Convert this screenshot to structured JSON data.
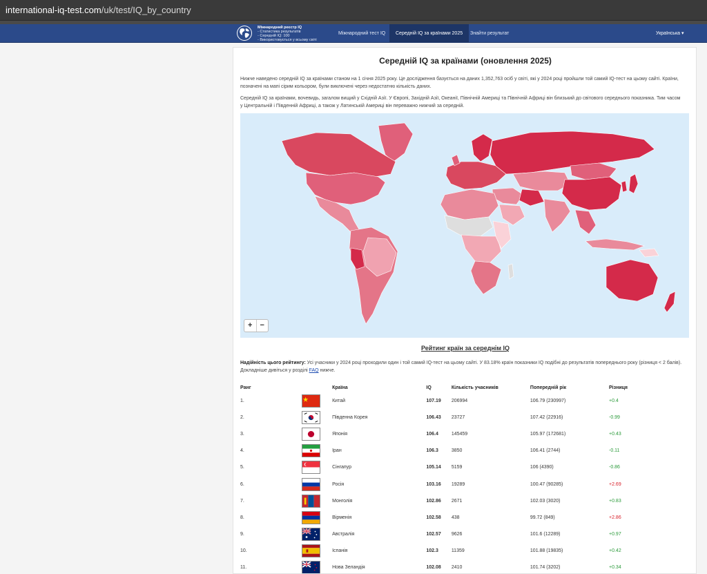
{
  "browser": {
    "url_host": "international-iq-test.com",
    "url_path": "/uk/test/IQ_by_country"
  },
  "navbar": {
    "logo_lines": [
      "Міжнародний реєстр IQ",
      "- Статистика результатів",
      "- Середній IQ: 100",
      "- Використовується у всьому світі"
    ],
    "links": [
      {
        "label": "Міжнародний тест IQ",
        "active": false
      },
      {
        "label": "Середній IQ за країнами 2025",
        "active": true
      },
      {
        "label": "Знайти результат",
        "active": false
      }
    ],
    "language": "Українська",
    "language_caret": "▾"
  },
  "page": {
    "title": "Середній IQ за країнами (оновлення 2025)",
    "intro_1": "Нижче наведено середній IQ за країнами станом на 1 січня 2025 року. Це дослідження базується на даних 1,352,763 осіб у світі, які у 2024 році пройшли той самий IQ-тест на цьому сайті. Країни, позначені на мапі сірим кольором, були виключені через недостатню кількість даних.",
    "intro_2": "Середній IQ за країнами, вочевидь, загалом вищий у Східній Азії. У Європі, Західній Азії, Океанії, Північній Америці та Північній Африці він близький до світового середнього показника. Тим часом у Центральній і Південній Африці, а також у Латинській Америці він переважно нижчий за середній.",
    "zoom_in": "+",
    "zoom_out": "−",
    "ranking_title": "Рейтинг країн за середнім IQ",
    "reliability_label": "Надійність цього рейтингу:",
    "reliability_text": " Усі учасники у 2024 році проходили один і той самий IQ-тест на цьому сайті. У 83.18% країн показники IQ подібні до результатів попереднього року (різниця < 2 балів). Докладніше дивіться у розділі ",
    "reliability_link": "FAQ",
    "reliability_end": " нижче."
  },
  "colors": {
    "navbar": "#2b4a8a",
    "map_dark": "#d42a4a",
    "map_mid": "#e0607a",
    "map_light": "#f2a8b4",
    "map_pale": "#fad2d8",
    "map_nodata": "#dedede",
    "ocean": "#d9ecfa"
  },
  "table": {
    "headers": {
      "rank": "Ранг",
      "country": "Країна",
      "iq": "IQ",
      "participants": "Кількість учасників",
      "previous": "Попередній рік",
      "diff": "Різниця"
    },
    "rows": [
      {
        "rank": "1.",
        "flag": "china-flag",
        "country": "Китай",
        "iq": "107.19",
        "participants": "206994",
        "previous": "106.79 (230997)",
        "diff": "+0.4",
        "tone": "pos"
      },
      {
        "rank": "2.",
        "flag": "south-korea-flag",
        "country": "Південна Корея",
        "iq": "106.43",
        "participants": "23727",
        "previous": "107.42 (22916)",
        "diff": "-0.99",
        "tone": "neg"
      },
      {
        "rank": "3.",
        "flag": "japan-flag",
        "country": "Японія",
        "iq": "106.4",
        "participants": "145459",
        "previous": "105.97 (172681)",
        "diff": "+0.43",
        "tone": "pos"
      },
      {
        "rank": "4.",
        "flag": "iran-flag",
        "country": "Іран",
        "iq": "106.3",
        "participants": "3850",
        "previous": "106.41 (2744)",
        "diff": "-0.11",
        "tone": "neg"
      },
      {
        "rank": "5.",
        "flag": "singapore-flag",
        "country": "Сінгапур",
        "iq": "105.14",
        "participants": "5159",
        "previous": "106 (4390)",
        "diff": "-0.86",
        "tone": "neg"
      },
      {
        "rank": "6.",
        "flag": "russia-flag",
        "country": "Росія",
        "iq": "103.16",
        "participants": "19289",
        "previous": "100.47 (90285)",
        "diff": "+2.69",
        "tone": "posred"
      },
      {
        "rank": "7.",
        "flag": "mongolia-flag",
        "country": "Монголія",
        "iq": "102.86",
        "participants": "2671",
        "previous": "102.03 (3020)",
        "diff": "+0.83",
        "tone": "pos"
      },
      {
        "rank": "8.",
        "flag": "armenia-flag",
        "country": "Вірменія",
        "iq": "102.58",
        "participants": "438",
        "previous": "99.72 (849)",
        "diff": "+2.86",
        "tone": "posred"
      },
      {
        "rank": "9.",
        "flag": "australia-flag",
        "country": "Австралія",
        "iq": "102.57",
        "participants": "9626",
        "previous": "101.6 (12289)",
        "diff": "+0.97",
        "tone": "pos"
      },
      {
        "rank": "10.",
        "flag": "spain-flag",
        "country": "Іспанія",
        "iq": "102.3",
        "participants": "11359",
        "previous": "101.88 (19835)",
        "diff": "+0.42",
        "tone": "pos"
      },
      {
        "rank": "11.",
        "flag": "new-zealand-flag",
        "country": "Нова Зеландія",
        "iq": "102.08",
        "participants": "2410",
        "previous": "101.74 (3202)",
        "diff": "+0.34",
        "tone": "pos"
      }
    ]
  }
}
